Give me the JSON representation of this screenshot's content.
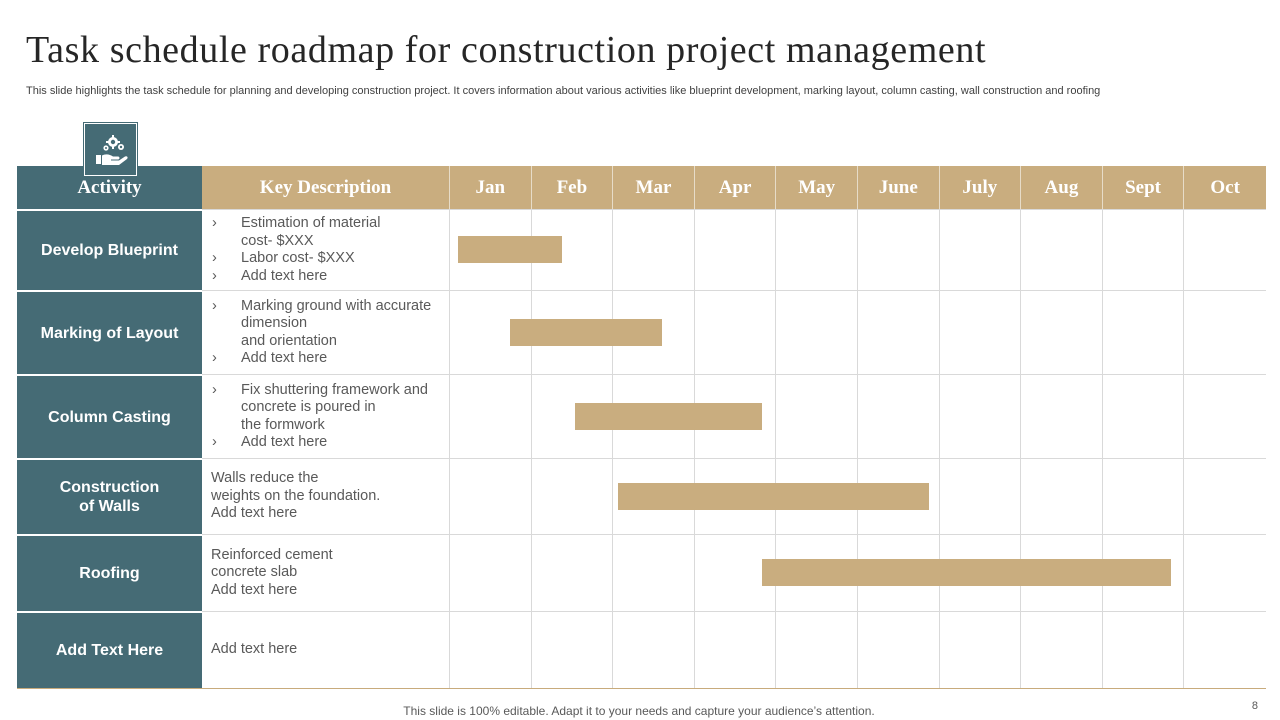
{
  "slide": {
    "title": "Task schedule roadmap for construction project management",
    "subtitle": "This slide highlights the task schedule for planning and developing construction project. It covers information about various activities like blueprint development, marking layout, column casting, wall construction and roofing",
    "logo_icon": "hand-gears-icon",
    "footer": "This slide is 100% editable. Adapt it to your needs and capture your audience’s attention.",
    "page_number": "8"
  },
  "colors": {
    "teal": "#456b75",
    "tan": "#c9ad7f",
    "grid_line": "#d9d9d9"
  },
  "table": {
    "header": {
      "activity": "Activity",
      "description": "Key Description",
      "months": [
        "Jan",
        "Feb",
        "Mar",
        "Apr",
        "May",
        "June",
        "July",
        "Aug",
        "Sept",
        "Oct"
      ]
    },
    "rows": [
      {
        "activity": "Develop Blueprint",
        "bullets": [
          "Estimation of material",
          "cost- $XXX",
          "Labor cost- $XXX",
          "Add text here"
        ]
      },
      {
        "activity": "Marking of Layout",
        "bullets": [
          "Marking ground with accurate",
          "dimension",
          "and orientation",
          "Add text here"
        ]
      },
      {
        "activity": "Column Casting",
        "bullets": [
          "Fix shuttering framework and",
          "concrete is poured in",
          "the formwork",
          "Add text here"
        ]
      },
      {
        "activity": "Construction of Walls",
        "lines": [
          "Walls reduce the",
          "weights on the foundation.",
          "Add text here"
        ]
      },
      {
        "activity": "Roofing",
        "lines": [
          "Reinforced cement",
          "concrete slab",
          "Add text here"
        ]
      },
      {
        "activity": "Add Text Here",
        "lines": [
          "Add text here"
        ]
      }
    ]
  },
  "schedule": [
    {
      "task": "Develop Blueprint",
      "start_month": 0.1,
      "end_month": 1.37
    },
    {
      "task": "Marking of Layout",
      "start_month": 0.73,
      "end_month": 2.6
    },
    {
      "task": "Column Casting",
      "start_month": 1.53,
      "end_month": 3.82
    },
    {
      "task": "Construction of Walls",
      "start_month": 2.06,
      "end_month": 5.87
    },
    {
      "task": "Roofing",
      "start_month": 3.82,
      "end_month": 8.83
    }
  ]
}
